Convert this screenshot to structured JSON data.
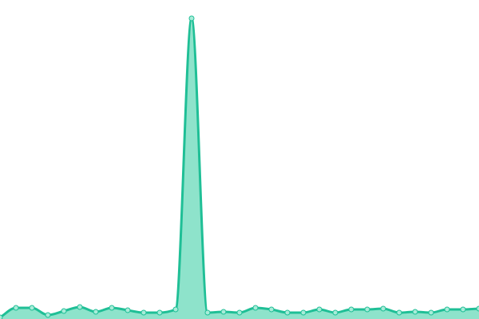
{
  "chart_data": {
    "type": "area",
    "values": [
      2,
      14,
      14,
      5,
      10,
      15,
      9,
      14,
      11,
      8,
      8,
      12,
      377,
      8,
      9,
      8,
      14,
      12,
      8,
      8,
      12,
      8,
      12,
      12,
      13,
      8,
      9,
      8,
      12,
      12,
      13
    ],
    "ylim": [
      0,
      400
    ],
    "color": "#1fbf96",
    "fill_color": "#8ee3cb",
    "point_fill": "#a9ecd9"
  }
}
